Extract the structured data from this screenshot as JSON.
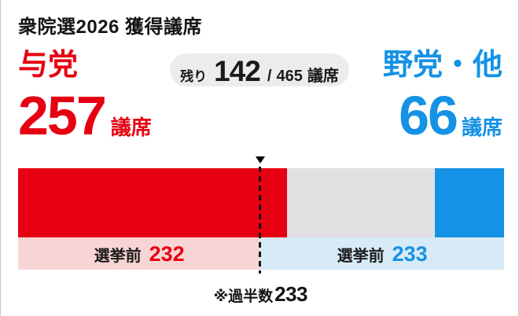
{
  "header": {
    "title": "衆院選2026 獲得議席"
  },
  "ruling": {
    "label": "与党",
    "seats": "257",
    "unit": "議席",
    "color": "#e60012"
  },
  "remaining_badge": {
    "prefix": "残り",
    "value": "142",
    "slash": "/",
    "total": "465",
    "unit": "議席"
  },
  "opposition": {
    "label": "野党・他",
    "seats": "66",
    "unit": "議席",
    "color": "#1592e5"
  },
  "pre_election_bands": {
    "left_label": "選挙前",
    "left_value": "232",
    "right_label": "選挙前",
    "right_value": "233"
  },
  "majority_note": {
    "prefix": "※過半数",
    "value": "233"
  },
  "colors": {
    "ruling_red": "#e60012",
    "opposition_blue": "#1592e5",
    "remaining_gray": "#e0e0e2",
    "pre_ruling_pink": "#f8d5d5",
    "pre_opposition_lightblue": "#d7eaf8",
    "badge_gray": "#ececec"
  },
  "chart_data": {
    "type": "bar",
    "orientation": "horizontal",
    "title": "衆院選2026 獲得議席",
    "total_seats": 465,
    "majority_threshold": 233,
    "segments": [
      {
        "name": "与党",
        "seats": 257,
        "color": "#e60012"
      },
      {
        "name": "残り",
        "seats": 142,
        "color": "#e0e0e2"
      },
      {
        "name": "野党・他",
        "seats": 66,
        "color": "#1592e5"
      }
    ],
    "pre_election": [
      {
        "name": "与党 選挙前",
        "seats": 232,
        "tint": "#f8d5d5"
      },
      {
        "name": "野党・他 選挙前",
        "seats": 233,
        "tint": "#d7eaf8"
      }
    ],
    "annotations": [
      {
        "text": "※過半数233",
        "at_seat": 233
      },
      {
        "text": "残り 142 / 465 議席"
      }
    ]
  }
}
